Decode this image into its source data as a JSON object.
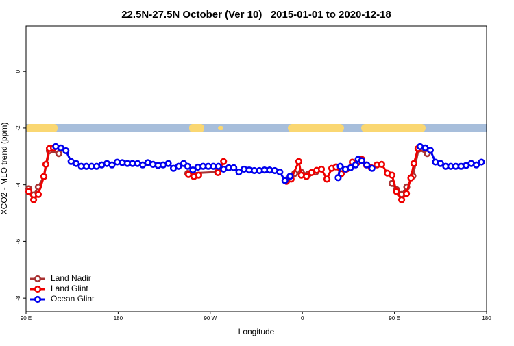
{
  "chart_data": {
    "type": "line",
    "title": "22.5N-27.5N October (Ver 10)   2015-01-01 to 2020-12-18",
    "xlabel": "Longitude",
    "ylabel": "XCO2 - MLO trend (ppm)",
    "xlim": [
      90,
      540
    ],
    "xticks": [
      {
        "value": 90,
        "label": "90 E"
      },
      {
        "value": 180,
        "label": "180"
      },
      {
        "value": 270,
        "label": "90 W"
      },
      {
        "value": 360,
        "label": "0"
      },
      {
        "value": 450,
        "label": "90 E"
      },
      {
        "value": 540,
        "label": "180"
      }
    ],
    "ylim": [
      -8.48,
      1.6
    ],
    "yticks": [
      0,
      -2,
      -4,
      -6,
      -8
    ],
    "legend": "bottom-left",
    "series": [
      {
        "name": "Land Nadir",
        "color": "#a83232",
        "x": [
          92.7,
          97.4,
          102,
          107.4,
          112.8,
          122,
          null,
          248,
          277,
          null,
          344.5,
          352.5,
          359,
          366,
          373,
          null,
          447.6,
          452,
          457,
          462,
          468,
          473.5,
          482
        ],
        "values": [
          -4.14,
          -4.36,
          -4.08,
          -3.71,
          -2.8,
          -2.9,
          null,
          -3.6,
          -3.55,
          null,
          -3.83,
          -3.6,
          -3.56,
          -3.62,
          -3.55,
          null,
          -3.95,
          -4.17,
          -4.34,
          -4.08,
          -3.69,
          -2.75,
          -2.9
        ]
      },
      {
        "name": "Land Glint",
        "color": "#ee0000",
        "x": [
          92.7,
          97.4,
          102,
          107.4,
          109.4,
          112.8,
          116.8,
          null,
          248.7,
          254,
          258.7,
          null,
          277.5,
          283,
          null,
          344.5,
          349,
          356.5,
          359,
          364,
          369,
          374,
          378.6,
          384,
          388.7,
          393,
          398,
          403,
          408.8,
          413.5,
          418,
          422.5,
          427.3,
          432.9,
          437.5,
          443,
          447.6,
          452,
          457,
          461.7,
          466,
          469,
          473
        ],
        "values": [
          -4.24,
          -4.53,
          -4.34,
          -3.71,
          -3.28,
          -2.72,
          -2.7,
          null,
          -3.64,
          -3.71,
          -3.66,
          null,
          -3.57,
          -3.18,
          null,
          -3.88,
          -3.8,
          -3.18,
          -3.66,
          -3.71,
          -3.57,
          -3.49,
          -3.45,
          -3.8,
          -3.42,
          -3.37,
          -3.61,
          -3.45,
          -3.2,
          -3.22,
          -3.1,
          -3.3,
          -3.4,
          -3.3,
          -3.28,
          -3.59,
          -3.66,
          -4.24,
          -4.53,
          -4.31,
          -3.76,
          -3.25,
          -2.72
        ]
      },
      {
        "name": "Ocean Glint",
        "color": "#0000ee",
        "x": [
          119,
          124,
          129,
          134,
          139,
          144,
          149,
          154,
          159,
          164,
          169,
          174,
          179,
          184,
          189,
          194,
          199,
          204,
          209,
          214,
          219,
          224,
          229,
          234,
          239,
          244,
          248,
          253,
          258,
          263,
          268,
          273,
          278,
          283,
          288,
          293,
          298,
          303,
          308,
          313,
          318,
          323,
          328,
          333,
          338,
          343,
          348,
          null,
          395,
          397,
          402,
          407,
          412,
          414.5,
          418,
          423,
          428,
          null,
          475,
          480,
          485,
          490,
          495,
          500,
          505,
          510,
          515,
          520,
          525,
          530,
          535
        ],
        "values": [
          -2.65,
          -2.7,
          -2.8,
          -3.18,
          -3.25,
          -3.35,
          -3.35,
          -3.35,
          -3.35,
          -3.3,
          -3.25,
          -3.3,
          -3.2,
          -3.22,
          -3.25,
          -3.25,
          -3.25,
          -3.3,
          -3.22,
          -3.28,
          -3.32,
          -3.3,
          -3.25,
          -3.42,
          -3.35,
          -3.25,
          -3.35,
          -3.48,
          -3.38,
          -3.35,
          -3.35,
          -3.35,
          -3.35,
          -3.45,
          -3.4,
          -3.4,
          -3.55,
          -3.45,
          -3.48,
          -3.5,
          -3.5,
          -3.48,
          -3.48,
          -3.5,
          -3.55,
          -3.85,
          -3.7,
          null,
          -3.75,
          -3.35,
          -3.45,
          -3.4,
          -3.3,
          -3.1,
          -3.15,
          -3.3,
          -3.42,
          null,
          -2.65,
          -2.7,
          -2.78,
          -3.2,
          -3.25,
          -3.35,
          -3.35,
          -3.35,
          -3.35,
          -3.32,
          -3.25,
          -3.3,
          -3.2
        ]
      }
    ]
  }
}
